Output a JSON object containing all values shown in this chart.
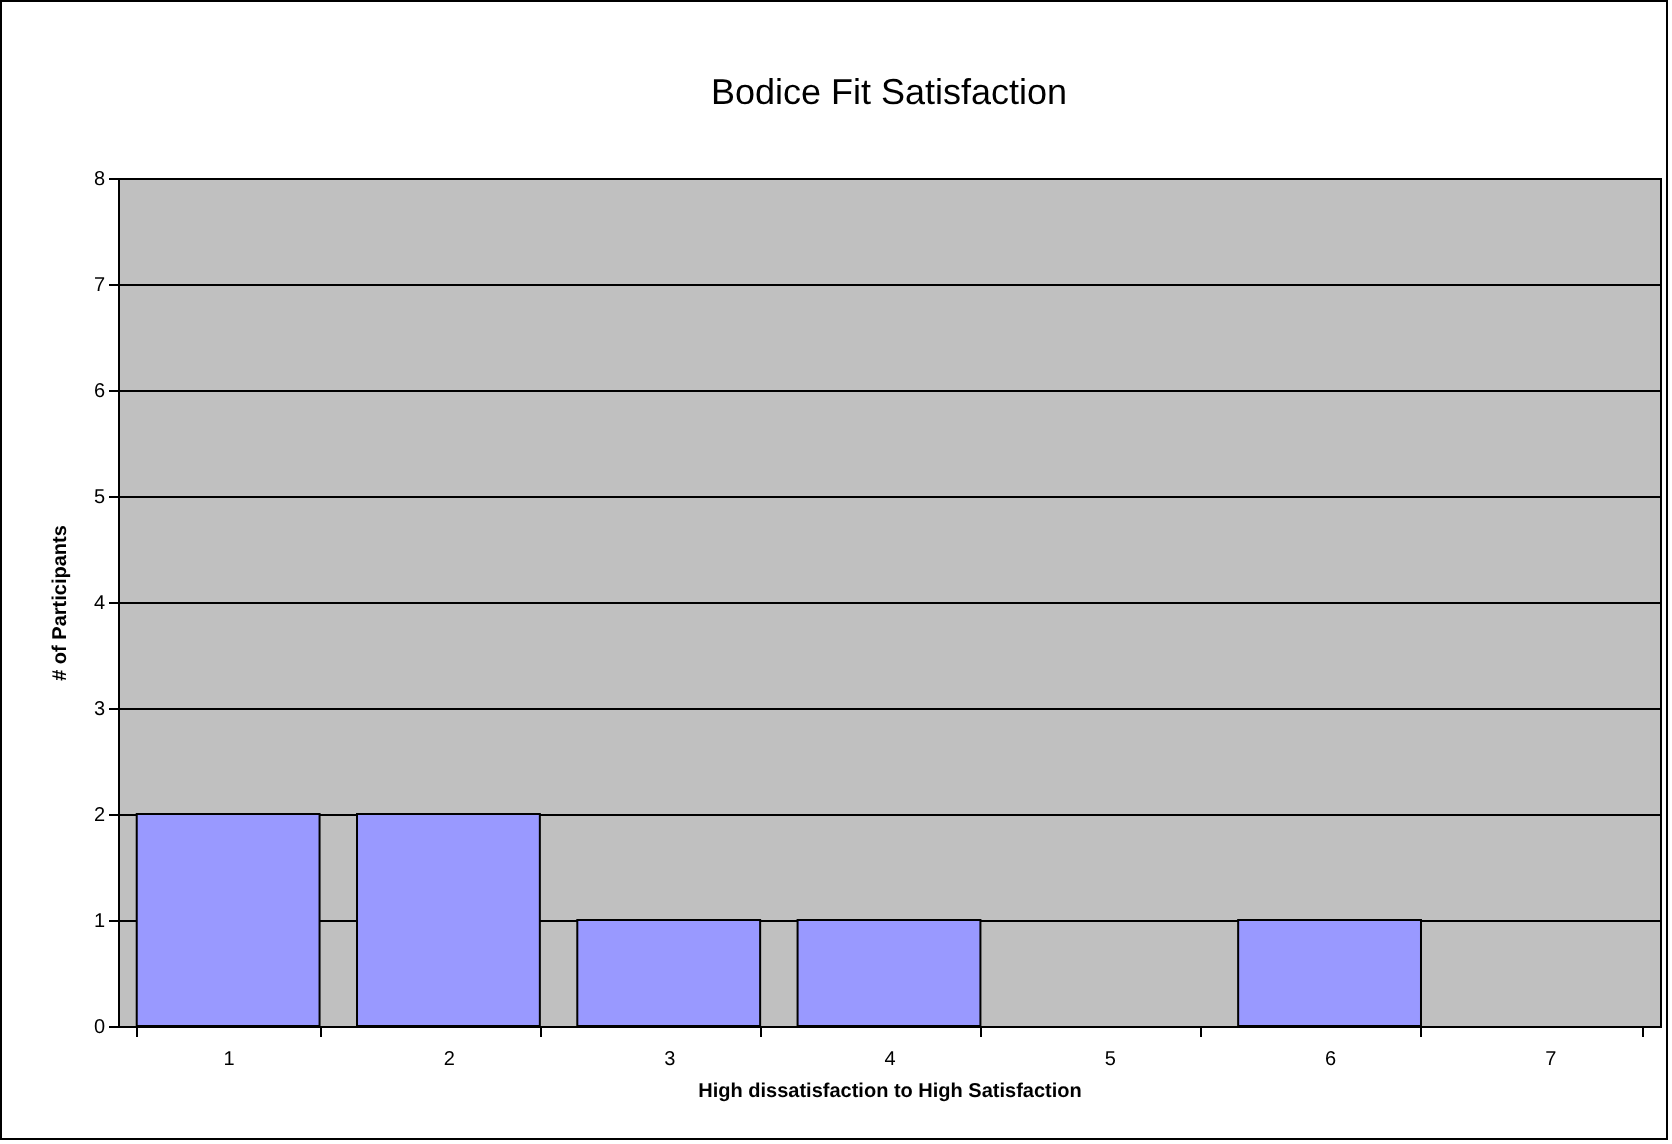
{
  "chart_data": {
    "type": "bar",
    "title": "Bodice Fit Satisfaction",
    "xlabel": "High dissatisfaction to High Satisfaction",
    "ylabel": "# of Participants",
    "categories": [
      "1",
      "2",
      "3",
      "4",
      "5",
      "6",
      "7"
    ],
    "values": [
      2,
      2,
      1,
      1,
      0,
      1,
      0
    ],
    "color": "#9999ff",
    "ylim": [
      0,
      8
    ],
    "yticks": [
      0,
      1,
      2,
      3,
      4,
      5,
      6,
      7,
      8
    ],
    "grid": "y"
  }
}
